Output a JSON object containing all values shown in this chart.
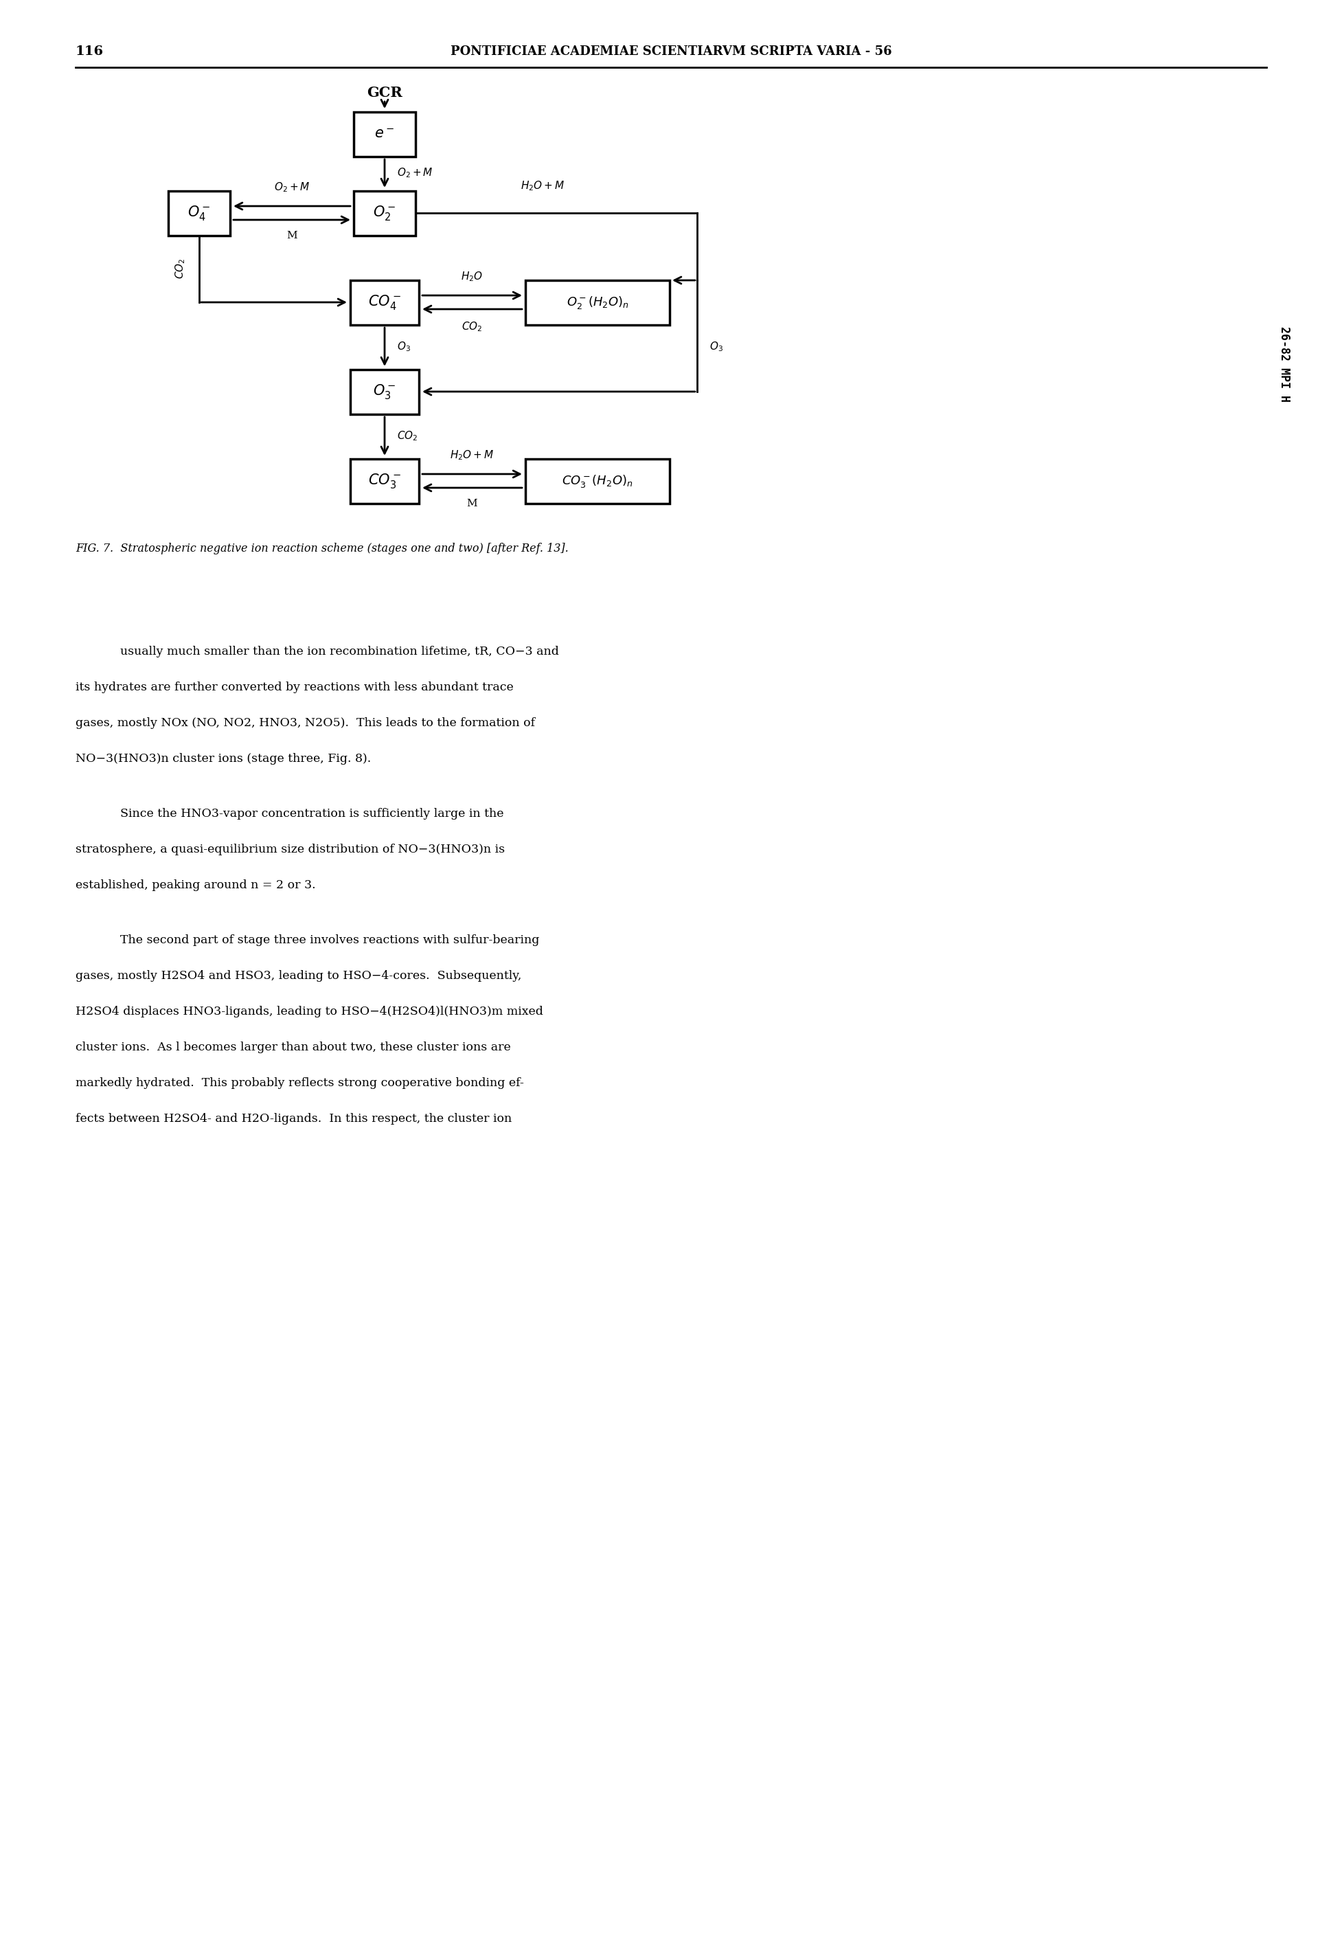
{
  "page_number": "116",
  "header": "PONTIFICIAE ACADEMIAE SCIENTIARVM SCRIPTA VARIA - 56",
  "side_label": "26-82 MPI H",
  "caption": "FIG. 7.  Stratospheric negative ion reaction scheme (stages one and two) [after Ref. 13].",
  "bg_color": "#ffffff",
  "text_color": "#000000",
  "body_paragraphs": [
    [
      "usually much smaller than the ion recombination lifetime, tR, CO−3 and",
      "its hydrates are further converted by reactions with less abundant trace",
      "gases, mostly NOx (NO, NO2, HNO3, N2O5).  This leads to the formation of",
      "NO−3(HNO3)n cluster ions (stage three, Fig. 8)."
    ],
    [
      "Since the HNO3-vapor concentration is sufficiently large in the",
      "stratosphere, a quasi-equilibrium size distribution of NO−3(HNO3)n is",
      "established, peaking around n = 2 or 3."
    ],
    [
      "The second part of stage three involves reactions with sulfur-bearing",
      "gases, mostly H2SO4 and HSO3, leading to HSO−4-cores.  Subsequently,",
      "H2SO4 displaces HNO3-ligands, leading to HSO−4(H2SO4)l(HNO3)m mixed",
      "cluster ions.  As l becomes larger than about two, these cluster ions are",
      "markedly hydrated.  This probably reflects strong cooperative bonding ef-",
      "fects between H2SO4- and H2O-ligands.  In this respect, the cluster ion"
    ]
  ]
}
